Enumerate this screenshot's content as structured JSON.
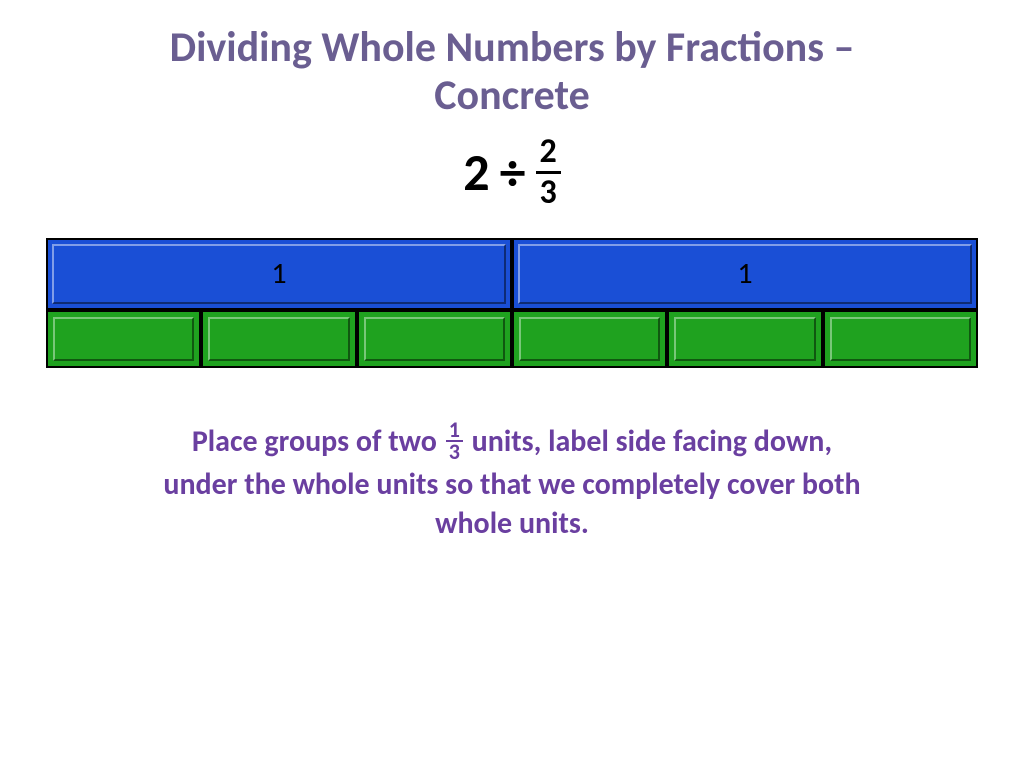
{
  "title": {
    "line1": "Dividing Whole Numbers by Fractions –",
    "line2": "Concrete",
    "color": "#6a5e91",
    "fontsize": 42
  },
  "equation": {
    "whole": "2",
    "operator": "÷",
    "fraction": {
      "numerator": "2",
      "denominator": "3"
    },
    "color": "#000000",
    "fraction_fontsize": 34
  },
  "bars": {
    "top": {
      "count": 2,
      "labels": [
        "1",
        "1"
      ],
      "bg_color": "#1a4fd6",
      "border_color": "#000000"
    },
    "bottom": {
      "count": 6,
      "bg_color": "#1fa21f",
      "border_color": "#000000"
    }
  },
  "caption": {
    "pre": "Place groups of two ",
    "fraction": {
      "numerator": "1",
      "denominator": "3"
    },
    "post": " units, label side facing down, under the whole units so that we completely cover both whole units.",
    "color": "#6a3fa0",
    "fontsize": 30
  }
}
